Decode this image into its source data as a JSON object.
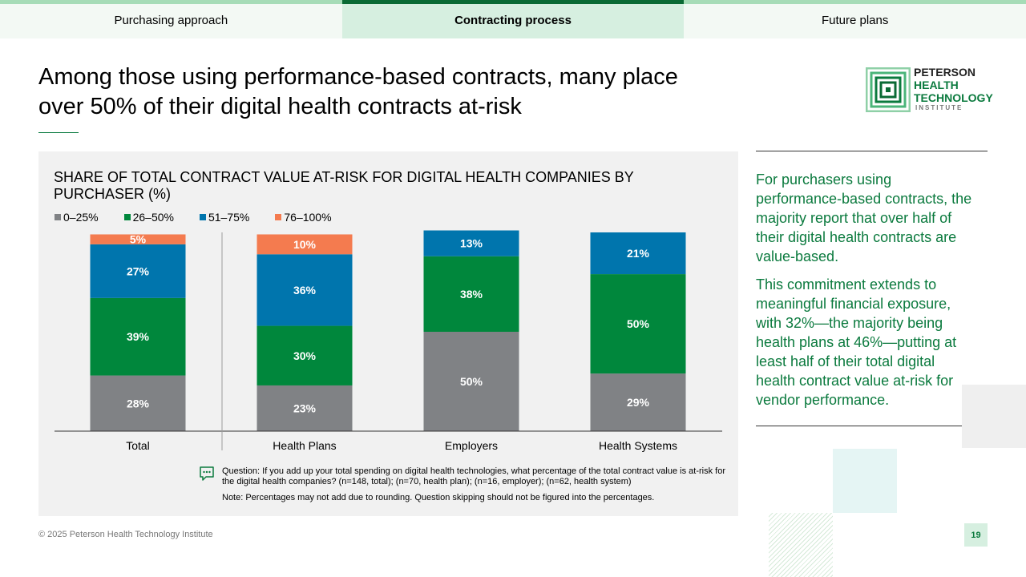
{
  "tabs": [
    {
      "label": "Purchasing approach",
      "active": false
    },
    {
      "label": "Contracting process",
      "active": true
    },
    {
      "label": "Future plans",
      "active": false
    }
  ],
  "title": "Among those using performance-based contracts, many place over 50% of their digital health contracts at-risk",
  "logo": {
    "line1": "PETERSON",
    "line2": "HEALTH",
    "line3": "TECHNOLOGY",
    "line4": "INSTITUTE"
  },
  "chart_data": {
    "type": "bar",
    "stacked": true,
    "title": "SHARE OF TOTAL CONTRACT VALUE AT-RISK FOR DIGITAL HEALTH COMPANIES BY PURCHASER (%)",
    "categories": [
      "Total",
      "Health Plans",
      "Employers",
      "Health Systems"
    ],
    "series": [
      {
        "name": "0–25%",
        "color": "#808285",
        "values": [
          28,
          23,
          50,
          29
        ]
      },
      {
        "name": "26–50%",
        "color": "#00873c",
        "values": [
          39,
          30,
          38,
          50
        ]
      },
      {
        "name": "51–75%",
        "color": "#0075ad",
        "values": [
          27,
          36,
          13,
          21
        ]
      },
      {
        "name": "76–100%",
        "color": "#f47b4f",
        "values": [
          5,
          10,
          0,
          0
        ]
      }
    ],
    "labels": [
      [
        "28%",
        "23%",
        "50%",
        "29%"
      ],
      [
        "39%",
        "30%",
        "38%",
        "50%"
      ],
      [
        "27%",
        "36%",
        "13%",
        "21%"
      ],
      [
        "5%",
        "10%",
        "",
        ""
      ]
    ],
    "ylim": [
      0,
      100
    ],
    "legend": "top-left",
    "grid": false
  },
  "footnote": {
    "question": "Question: If you add up your total spending on digital health technologies, what percentage of the total contract value is at-risk for the digital health companies? (n=148, total); (n=70, health plan); (n=16, employer); (n=62, health system)",
    "note": "Note: Percentages may not add due to rounding. Question skipping should not be figured into the percentages."
  },
  "sidebar": {
    "p1": "For purchasers using performance-based contracts, the majority report that over half of their digital health contracts are value-based.",
    "p2": "This commitment extends to meaningful financial exposure, with 32%—the majority being health plans at 46%—putting at least half of their total digital health contract value at-risk for vendor performance."
  },
  "copyright": "© 2025 Peterson Health Technology Institute",
  "page_number": "19"
}
